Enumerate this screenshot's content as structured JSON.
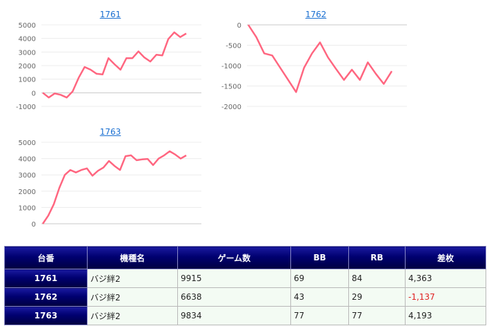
{
  "charts": [
    {
      "title": "1761",
      "ylim": [
        -1000,
        5000
      ],
      "yticks": [
        -1000,
        0,
        1000,
        2000,
        3000,
        4000,
        5000
      ],
      "values": [
        0,
        -350,
        -50,
        -150,
        -350,
        100,
        1100,
        1900,
        1700,
        1400,
        1350,
        2550,
        2100,
        1700,
        2550,
        2550,
        3050,
        2600,
        2300,
        2800,
        2750,
        3950,
        4450,
        4100,
        4363
      ]
    },
    {
      "title": "1762",
      "ylim": [
        -2000,
        0
      ],
      "yticks": [
        -2000,
        -1500,
        -1000,
        -500,
        0
      ],
      "values": [
        0,
        -300,
        -700,
        -750,
        -1050,
        -1350,
        -1650,
        -1050,
        -700,
        -430,
        -800,
        -1080,
        -1350,
        -1100,
        -1350,
        -920,
        -1200,
        -1450,
        -1137
      ]
    },
    {
      "title": "1763",
      "ylim": [
        0,
        5000
      ],
      "yticks": [
        0,
        1000,
        2000,
        3000,
        4000,
        5000
      ],
      "values": [
        0,
        500,
        1200,
        2200,
        3000,
        3300,
        3150,
        3300,
        3400,
        2950,
        3250,
        3450,
        3850,
        3550,
        3300,
        4150,
        4200,
        3900,
        3950,
        3980,
        3600,
        4000,
        4200,
        4450,
        4250,
        4000,
        4193
      ]
    }
  ],
  "line_color": "#ff6680",
  "table": {
    "headers": [
      "台番",
      "機種名",
      "ゲーム数",
      "BB",
      "RB",
      "差枚"
    ],
    "rows": [
      {
        "number": "1761",
        "machine": "バジ絆2",
        "games": "9915",
        "bb": "69",
        "rb": "84",
        "diff": "4,363"
      },
      {
        "number": "1762",
        "machine": "バジ絆2",
        "games": "6638",
        "bb": "43",
        "rb": "29",
        "diff": "-1,137"
      },
      {
        "number": "1763",
        "machine": "バジ絆2",
        "games": "9834",
        "bb": "77",
        "rb": "77",
        "diff": "4,193"
      }
    ]
  },
  "chart_data": [
    {
      "type": "line",
      "title": "1761",
      "ylim": [
        -1000,
        5000
      ],
      "series": [
        {
          "values": [
            0,
            -350,
            -50,
            -150,
            -350,
            100,
            1100,
            1900,
            1700,
            1400,
            1350,
            2550,
            2100,
            1700,
            2550,
            2550,
            3050,
            2600,
            2300,
            2800,
            2750,
            3950,
            4450,
            4100,
            4363
          ]
        }
      ]
    },
    {
      "type": "line",
      "title": "1762",
      "ylim": [
        -2000,
        0
      ],
      "series": [
        {
          "values": [
            0,
            -300,
            -700,
            -750,
            -1050,
            -1350,
            -1650,
            -1050,
            -700,
            -430,
            -800,
            -1080,
            -1350,
            -1100,
            -1350,
            -920,
            -1200,
            -1450,
            -1137
          ]
        }
      ]
    },
    {
      "type": "line",
      "title": "1763",
      "ylim": [
        0,
        5000
      ],
      "series": [
        {
          "values": [
            0,
            500,
            1200,
            2200,
            3000,
            3300,
            3150,
            3300,
            3400,
            2950,
            3250,
            3450,
            3850,
            3550,
            3300,
            4150,
            4200,
            3900,
            3950,
            3980,
            3600,
            4000,
            4200,
            4450,
            4250,
            4000,
            4193
          ]
        }
      ]
    }
  ]
}
